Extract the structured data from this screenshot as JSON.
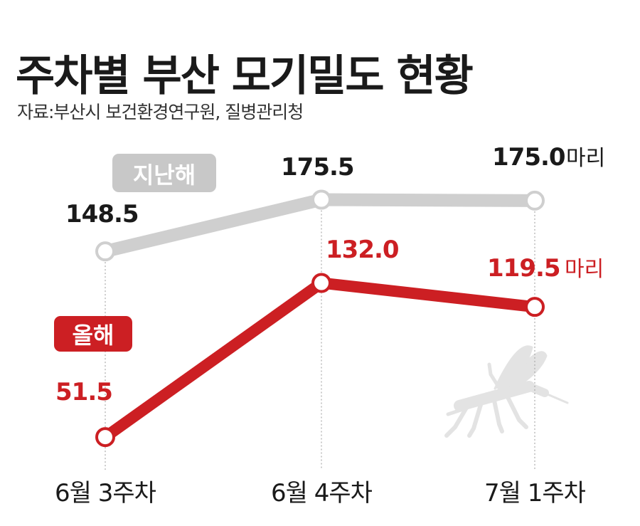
{
  "title": "주차별 부산 모기밀도 현황",
  "source": "자료:부산시 보건환경연구원, 질병관리청",
  "chart_data": {
    "type": "line",
    "categories": [
      "6월 3주차",
      "6월 4주차",
      "7월 1주차"
    ],
    "series": [
      {
        "name": "지난해",
        "values": [
          148.5,
          175.5,
          175.0
        ],
        "labels": [
          "148.5",
          "175.5",
          "175.0"
        ],
        "color": "#cfcfcf"
      },
      {
        "name": "올해",
        "values": [
          51.5,
          132.0,
          119.5
        ],
        "labels": [
          "51.5",
          "132.0",
          "119.5"
        ],
        "color": "#cc1f23"
      }
    ],
    "unit": "마리",
    "ylim": [
      40,
      185
    ],
    "grid": false,
    "colors": {
      "last_year": "#cfcfcf",
      "this_year": "#cc1f23",
      "value_last_year": "#1a1a1a",
      "value_this_year": "#cc1f23",
      "dropline": "#aaaaaa",
      "mosquito": "#e3e3e3"
    }
  },
  "icons": {
    "mosquito": "mosquito-icon"
  }
}
